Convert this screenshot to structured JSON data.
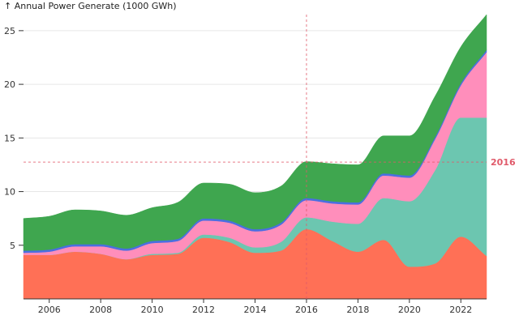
{
  "chart_data": {
    "type": "area",
    "stacked": true,
    "title": "",
    "ylabel": "↑ Annual Power Generate (1000 GWh)",
    "xlabel": "",
    "xlim": [
      2005,
      2023
    ],
    "ylim": [
      0,
      26.5
    ],
    "x": [
      2005,
      2006,
      2007,
      2008,
      2009,
      2010,
      2011,
      2012,
      2013,
      2014,
      2015,
      2016,
      2017,
      2018,
      2019,
      2020,
      2021,
      2022,
      2023
    ],
    "x_ticks": [
      2006,
      2008,
      2010,
      2012,
      2014,
      2016,
      2018,
      2020,
      2022
    ],
    "y_ticks": [
      5,
      10,
      15,
      20,
      25
    ],
    "grid": "horizontal",
    "series": [
      {
        "color": "#ff7056",
        "values": [
          4.1,
          4.1,
          4.4,
          4.2,
          3.7,
          4.1,
          4.2,
          5.7,
          5.3,
          4.3,
          4.5,
          6.5,
          5.4,
          4.4,
          5.5,
          3.0,
          3.3,
          5.8,
          4.0
        ]
      },
      {
        "color": "#6cc6b0",
        "values": [
          0.0,
          0.0,
          0.0,
          0.0,
          0.0,
          0.1,
          0.1,
          0.3,
          0.4,
          0.5,
          0.8,
          1.1,
          1.8,
          2.6,
          3.9,
          6.1,
          8.7,
          11.1,
          12.9
        ]
      },
      {
        "color": "#ff8ebb",
        "values": [
          0.2,
          0.3,
          0.5,
          0.7,
          0.8,
          1.0,
          1.1,
          1.3,
          1.4,
          1.5,
          1.6,
          1.6,
          1.7,
          1.8,
          2.1,
          2.2,
          2.9,
          3.0,
          6.1
        ]
      },
      {
        "color": "#4a6fe0",
        "values": [
          0.2,
          0.2,
          0.2,
          0.2,
          0.2,
          0.2,
          0.2,
          0.2,
          0.2,
          0.2,
          0.2,
          0.2,
          0.2,
          0.2,
          0.2,
          0.2,
          0.2,
          0.2,
          0.2
        ]
      },
      {
        "color": "#3fa64f",
        "values": [
          3.0,
          3.1,
          3.2,
          3.1,
          3.1,
          3.1,
          3.4,
          3.3,
          3.4,
          3.4,
          3.4,
          3.4,
          3.5,
          3.5,
          3.5,
          3.7,
          3.8,
          3.4,
          3.3
        ]
      }
    ],
    "crosshair": {
      "x": 2016,
      "y": 12.75,
      "label": "2016",
      "color": "#e05a6a"
    }
  }
}
